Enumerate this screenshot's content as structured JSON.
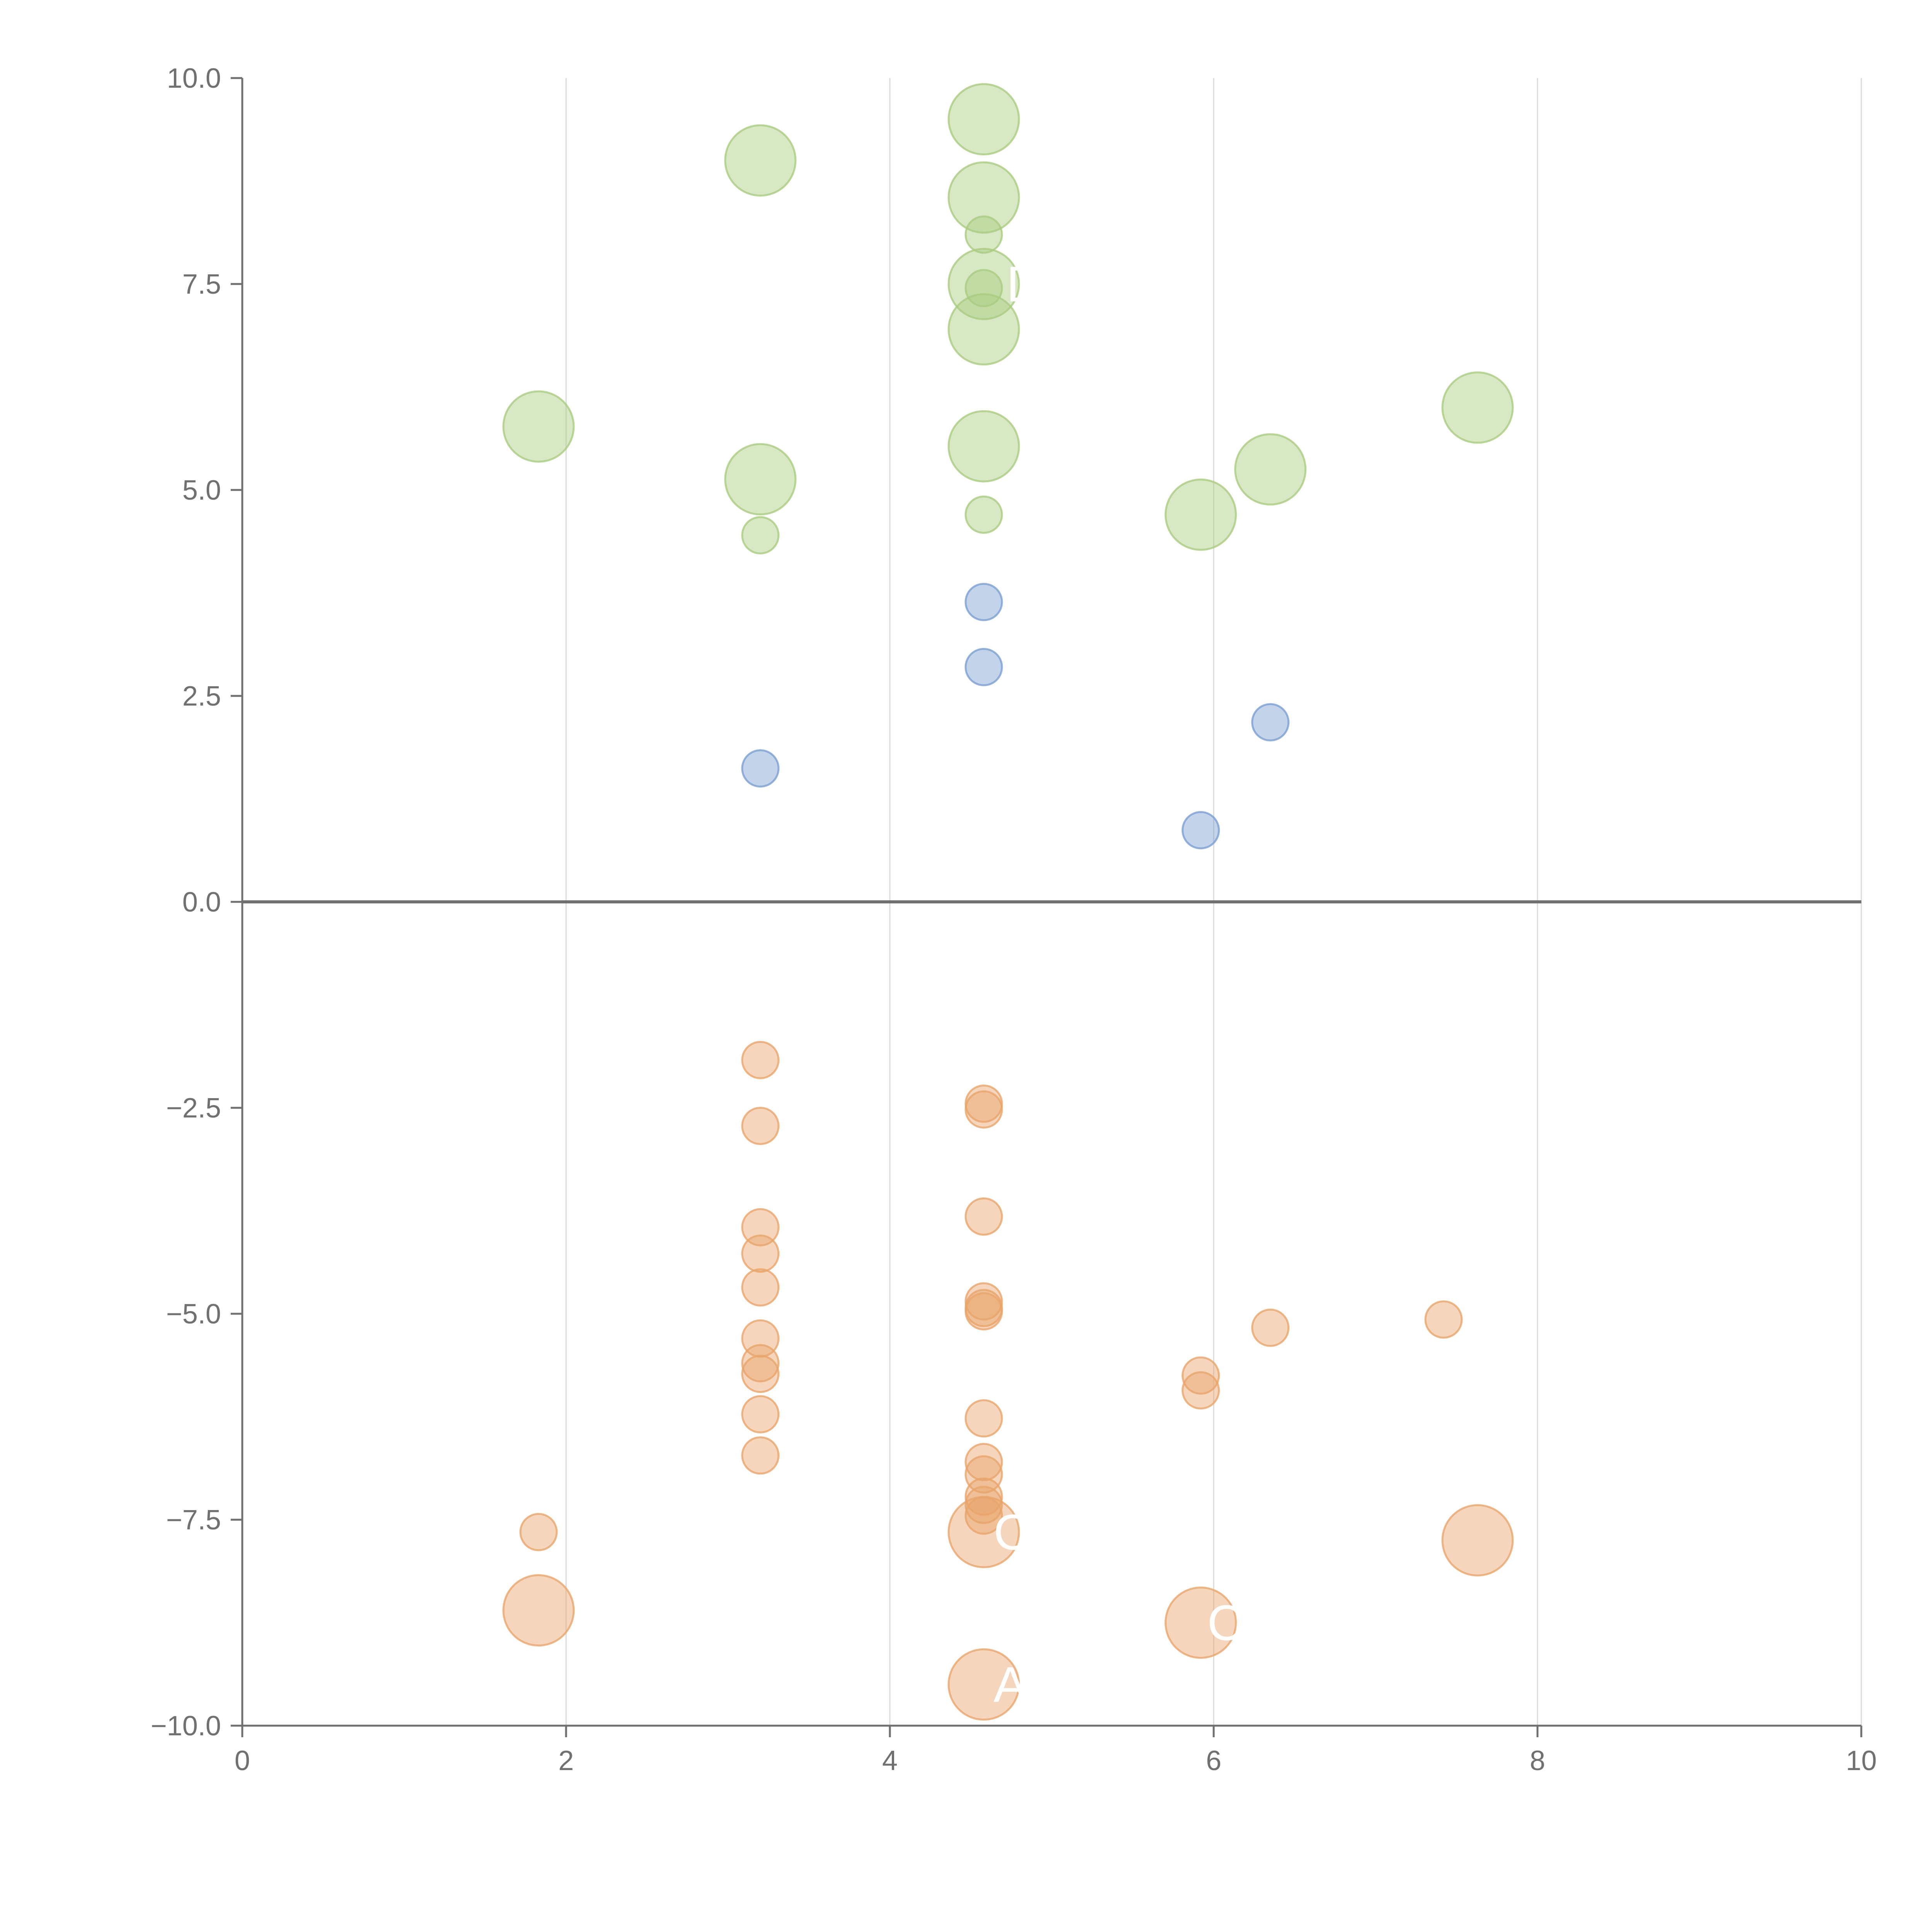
{
  "chart_data": {
    "type": "scatter",
    "title": "",
    "xlabel": "",
    "ylabel": "",
    "xlim": [
      0,
      10
    ],
    "ylim": [
      -10,
      10
    ],
    "grid": "vertical",
    "x_ticks": [
      "0",
      "2",
      "4",
      "6",
      "8",
      "10"
    ],
    "y_ticks": [
      "10.0",
      "7.5",
      "5.0",
      "2.5",
      "0.0",
      "−2.5",
      "−5.0",
      "−7.5",
      "−10.0"
    ],
    "colors": {
      "green": "#a9cc7f",
      "blue": "#7b9fd1",
      "orange": "#e9a56a",
      "axis": "#707070",
      "grid": "#d9d9d9",
      "zero_line": "#707070"
    },
    "series": [
      {
        "name": "green",
        "points": [
          {
            "x": 3.2,
            "y": 9.0,
            "size": "large"
          },
          {
            "x": 4.58,
            "y": 9.5,
            "size": "large"
          },
          {
            "x": 4.58,
            "y": 8.55,
            "size": "large"
          },
          {
            "x": 4.58,
            "y": 8.1,
            "size": "small"
          },
          {
            "x": 4.58,
            "y": 7.5,
            "size": "large"
          },
          {
            "x": 4.58,
            "y": 7.45,
            "size": "small"
          },
          {
            "x": 4.58,
            "y": 6.95,
            "size": "large"
          },
          {
            "x": 1.83,
            "y": 5.77,
            "size": "large"
          },
          {
            "x": 3.2,
            "y": 5.13,
            "size": "large"
          },
          {
            "x": 3.2,
            "y": 4.45,
            "size": "small"
          },
          {
            "x": 4.58,
            "y": 5.53,
            "size": "large"
          },
          {
            "x": 4.58,
            "y": 4.7,
            "size": "small"
          },
          {
            "x": 5.92,
            "y": 4.7,
            "size": "large"
          },
          {
            "x": 6.35,
            "y": 5.25,
            "size": "large"
          },
          {
            "x": 7.63,
            "y": 6.0,
            "size": "large"
          }
        ]
      },
      {
        "name": "blue",
        "points": [
          {
            "x": 4.58,
            "y": 3.64,
            "size": "small"
          },
          {
            "x": 4.58,
            "y": 2.85,
            "size": "small"
          },
          {
            "x": 3.2,
            "y": 1.62,
            "size": "small"
          },
          {
            "x": 6.35,
            "y": 2.18,
            "size": "small"
          },
          {
            "x": 5.92,
            "y": 0.87,
            "size": "small"
          }
        ]
      },
      {
        "name": "orange",
        "points": [
          {
            "x": 3.2,
            "y": -1.92,
            "size": "small"
          },
          {
            "x": 3.2,
            "y": -2.72,
            "size": "small"
          },
          {
            "x": 3.2,
            "y": -3.95,
            "size": "small"
          },
          {
            "x": 3.2,
            "y": -4.27,
            "size": "small"
          },
          {
            "x": 3.2,
            "y": -4.68,
            "size": "small"
          },
          {
            "x": 3.2,
            "y": -5.3,
            "size": "small"
          },
          {
            "x": 3.2,
            "y": -5.6,
            "size": "small"
          },
          {
            "x": 3.2,
            "y": -5.73,
            "size": "small"
          },
          {
            "x": 3.2,
            "y": -6.22,
            "size": "small"
          },
          {
            "x": 3.2,
            "y": -6.72,
            "size": "small"
          },
          {
            "x": 4.58,
            "y": -2.45,
            "size": "small"
          },
          {
            "x": 4.58,
            "y": -2.52,
            "size": "small"
          },
          {
            "x": 4.58,
            "y": -3.82,
            "size": "small"
          },
          {
            "x": 4.58,
            "y": -4.85,
            "size": "small"
          },
          {
            "x": 4.58,
            "y": -4.93,
            "size": "small"
          },
          {
            "x": 4.58,
            "y": -4.97,
            "size": "small"
          },
          {
            "x": 4.58,
            "y": -6.27,
            "size": "small"
          },
          {
            "x": 4.58,
            "y": -6.8,
            "size": "small"
          },
          {
            "x": 4.58,
            "y": -6.95,
            "size": "small"
          },
          {
            "x": 4.58,
            "y": -7.22,
            "size": "small"
          },
          {
            "x": 4.58,
            "y": -7.32,
            "size": "small"
          },
          {
            "x": 4.58,
            "y": -7.45,
            "size": "small"
          },
          {
            "x": 4.58,
            "y": -7.65,
            "size": "large"
          },
          {
            "x": 4.58,
            "y": -9.5,
            "size": "large"
          },
          {
            "x": 1.83,
            "y": -7.65,
            "size": "small"
          },
          {
            "x": 1.83,
            "y": -8.6,
            "size": "large"
          },
          {
            "x": 5.92,
            "y": -5.75,
            "size": "small"
          },
          {
            "x": 5.92,
            "y": -5.93,
            "size": "small"
          },
          {
            "x": 5.92,
            "y": -8.75,
            "size": "large"
          },
          {
            "x": 6.35,
            "y": -5.17,
            "size": "small"
          },
          {
            "x": 7.42,
            "y": -5.07,
            "size": "small"
          },
          {
            "x": 7.63,
            "y": -7.75,
            "size": "large"
          }
        ]
      }
    ],
    "annotations": [
      {
        "text": "D",
        "x": 4.72,
        "y": 7.5
      },
      {
        "text": "C",
        "x": 4.64,
        "y": -7.65
      },
      {
        "text": "C",
        "x": 5.96,
        "y": -8.75
      },
      {
        "text": "A",
        "x": 4.64,
        "y": -9.5
      }
    ]
  }
}
